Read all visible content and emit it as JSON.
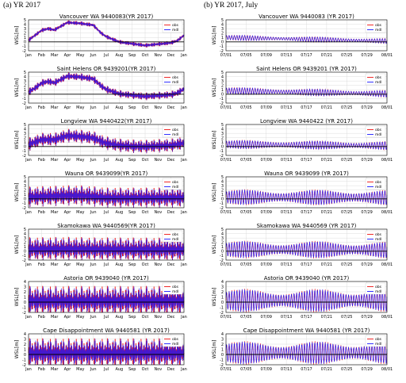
{
  "headers": {
    "left": "(a) YR 2017",
    "right": "(b) YR 2017, July"
  },
  "ylabel": "WSL[m]",
  "legend": {
    "obs": "obs",
    "mdl": "mdl"
  },
  "colors": {
    "obs": "#ee1111",
    "mdl": "#1a1aff",
    "zero": "#000000"
  },
  "chart_data": [
    {
      "type": "line",
      "panel": "a",
      "row": 0,
      "title": "Vancouver WA 9440083(YR 2017)",
      "xticks": [
        "Jan",
        "Feb",
        "Mar",
        "Apr",
        "May",
        "Jun",
        "Jul",
        "Aug",
        "Sep",
        "Oct",
        "Nov",
        "Dec",
        "Jan"
      ],
      "yticks": [
        -2,
        -1,
        0,
        1,
        2,
        3,
        4,
        5
      ],
      "ylim": [
        -2,
        5
      ],
      "legend_position": "top-right",
      "series": [
        {
          "name": "obs"
        },
        {
          "name": "mdl"
        }
      ],
      "stage": [
        [
          0,
          0.4
        ],
        [
          0.5,
          1.5
        ],
        [
          1,
          2.6
        ],
        [
          1.5,
          3.0
        ],
        [
          2,
          2.7
        ],
        [
          3,
          4.4
        ],
        [
          4,
          4.2
        ],
        [
          5,
          3.8
        ],
        [
          5.6,
          2.0
        ],
        [
          6,
          1.2
        ],
        [
          7,
          0.0
        ],
        [
          8,
          -0.4
        ],
        [
          9,
          -0.8
        ],
        [
          10,
          -0.5
        ],
        [
          11,
          -0.2
        ],
        [
          11.5,
          0.3
        ],
        [
          12,
          1.5
        ]
      ],
      "tidal_range": 0.5
    },
    {
      "type": "line",
      "panel": "a",
      "row": 1,
      "title": "Saint Helens OR 9439201(YR 2017)",
      "xticks": [
        "Jan",
        "Feb",
        "Mar",
        "Apr",
        "May",
        "Jun",
        "Jul",
        "Aug",
        "Sep",
        "Oct",
        "Nov",
        "Dec",
        "Jan"
      ],
      "yticks": [
        -2,
        -1,
        0,
        1,
        2,
        3,
        4,
        5
      ],
      "ylim": [
        -2,
        5
      ],
      "legend_position": "top-right",
      "series": [
        {
          "name": "obs"
        },
        {
          "name": "mdl"
        }
      ],
      "stage": [
        [
          0,
          0.5
        ],
        [
          0.5,
          1.4
        ],
        [
          1,
          2.5
        ],
        [
          1.5,
          2.9
        ],
        [
          2,
          2.6
        ],
        [
          3,
          4.1
        ],
        [
          4,
          3.9
        ],
        [
          5,
          3.5
        ],
        [
          5.6,
          1.9
        ],
        [
          6,
          1.1
        ],
        [
          7,
          0.1
        ],
        [
          8,
          -0.2
        ],
        [
          9,
          -0.5
        ],
        [
          10,
          -0.3
        ],
        [
          11,
          -0.1
        ],
        [
          11.5,
          0.3
        ],
        [
          12,
          1.2
        ]
      ],
      "tidal_range": 0.9
    },
    {
      "type": "line",
      "panel": "a",
      "row": 2,
      "title": "Longview WA 9440422(YR 2017)",
      "xticks": [
        "Jan",
        "Feb",
        "Mar",
        "Apr",
        "May",
        "Jun",
        "Jul",
        "Aug",
        "Sep",
        "Oct",
        "Nov",
        "Dec",
        "Jan"
      ],
      "yticks": [
        -2,
        -1,
        0,
        1,
        2,
        3,
        4,
        5
      ],
      "ylim": [
        -2,
        5
      ],
      "legend_position": "top-right",
      "series": [
        {
          "name": "obs"
        },
        {
          "name": "mdl"
        }
      ],
      "stage": [
        [
          0,
          0.5
        ],
        [
          1,
          1.6
        ],
        [
          2,
          1.6
        ],
        [
          3,
          2.5
        ],
        [
          4,
          2.3
        ],
        [
          5,
          2.0
        ],
        [
          5.6,
          1.2
        ],
        [
          6,
          0.8
        ],
        [
          7,
          0.3
        ],
        [
          8,
          0.1
        ],
        [
          9,
          0.0
        ],
        [
          10,
          0.2
        ],
        [
          11,
          0.3
        ],
        [
          12,
          0.8
        ]
      ],
      "tidal_range": 1.6
    },
    {
      "type": "line",
      "panel": "a",
      "row": 3,
      "title": "Wauna OR 9439099(YR 2017)",
      "xticks": [
        "Jan",
        "Feb",
        "Mar",
        "Apr",
        "May",
        "Jun",
        "Jul",
        "Aug",
        "Sep",
        "Oct",
        "Nov",
        "Dec",
        "Jan"
      ],
      "yticks": [
        -2,
        -1,
        0,
        1,
        2,
        3,
        4,
        5
      ],
      "ylim": [
        -2,
        5
      ],
      "legend_position": "top-right",
      "series": [
        {
          "name": "obs"
        },
        {
          "name": "mdl"
        }
      ],
      "stage": [
        [
          0,
          0.5
        ],
        [
          3,
          0.8
        ],
        [
          4,
          0.8
        ],
        [
          5,
          0.6
        ],
        [
          6,
          0.3
        ],
        [
          12,
          0.3
        ]
      ],
      "tidal_range": 2.4
    },
    {
      "type": "line",
      "panel": "a",
      "row": 4,
      "title": "Skamokawa WA 9440569(YR 2017)",
      "xticks": [
        "Jan",
        "Feb",
        "Mar",
        "Apr",
        "May",
        "Jun",
        "Jul",
        "Aug",
        "Sep",
        "Oct",
        "Nov",
        "Dec",
        "Jan"
      ],
      "yticks": [
        -2,
        -1,
        0,
        1,
        2,
        3,
        4,
        5
      ],
      "ylim": [
        -2,
        5
      ],
      "legend_position": "top-right",
      "series": [
        {
          "name": "obs"
        },
        {
          "name": "mdl"
        }
      ],
      "stage": [
        [
          0,
          0.5
        ],
        [
          3,
          0.6
        ],
        [
          5,
          0.5
        ],
        [
          12,
          0.4
        ]
      ],
      "tidal_range": 2.8
    },
    {
      "type": "line",
      "panel": "a",
      "row": 5,
      "title": "Astoria OR 9439040 (YR 2017)",
      "xticks": [
        "Jan",
        "Feb",
        "Mar",
        "Apr",
        "May",
        "Jun",
        "Jul",
        "Aug",
        "Sep",
        "Oct",
        "Nov",
        "Dec",
        "Jan"
      ],
      "yticks": [
        -2,
        -1,
        0,
        1,
        2,
        3,
        4
      ],
      "ylim": [
        -2,
        4
      ],
      "legend_position": "top-right",
      "series": [
        {
          "name": "obs"
        },
        {
          "name": "mdl"
        }
      ],
      "stage": [
        [
          0,
          0.3
        ],
        [
          12,
          0.3
        ]
      ],
      "tidal_range": 3.0
    },
    {
      "type": "line",
      "panel": "a",
      "row": 6,
      "title": "Cape Disappointment WA 9440581 (YR 2017)",
      "xticks": [
        "Jan",
        "Feb",
        "Mar",
        "Apr",
        "May",
        "Jun",
        "Jul",
        "Aug",
        "Sep",
        "Oct",
        "Nov",
        "Dec",
        "Jan"
      ],
      "yticks": [
        -2,
        -1,
        0,
        1,
        2,
        3,
        4
      ],
      "ylim": [
        -2,
        4
      ],
      "legend_position": "top-right",
      "series": [
        {
          "name": "obs"
        },
        {
          "name": "mdl"
        }
      ],
      "stage": [
        [
          0,
          0.3
        ],
        [
          12,
          0.3
        ]
      ],
      "tidal_range": 3.0
    },
    {
      "type": "line",
      "panel": "b",
      "row": 0,
      "title": "Vancouver WA 9440083 (YR 2017)",
      "xticks": [
        "07/01",
        "07/05",
        "07/09",
        "07/13",
        "07/17",
        "07/21",
        "07/25",
        "07/29",
        "08/01"
      ],
      "yticks": [
        -2,
        -1,
        0,
        1,
        2,
        3,
        4,
        5
      ],
      "ylim": [
        -2,
        5
      ],
      "legend_position": "top-right",
      "series": [
        {
          "name": "obs"
        },
        {
          "name": "mdl"
        }
      ],
      "stage": [
        [
          0,
          1.0
        ],
        [
          31,
          0.2
        ]
      ],
      "tidal_range": 0.6
    },
    {
      "type": "line",
      "panel": "b",
      "row": 1,
      "title": "Saint Helens OR 9439201 (YR 2017)",
      "xticks": [
        "07/01",
        "07/05",
        "07/09",
        "07/13",
        "07/17",
        "07/21",
        "07/25",
        "07/29",
        "08/01"
      ],
      "yticks": [
        -2,
        -1,
        0,
        1,
        2,
        3,
        4,
        5
      ],
      "ylim": [
        -2,
        5
      ],
      "legend_position": "top-right",
      "series": [
        {
          "name": "obs"
        },
        {
          "name": "mdl"
        }
      ],
      "stage": [
        [
          0,
          0.8
        ],
        [
          31,
          0.1
        ]
      ],
      "tidal_range": 0.8
    },
    {
      "type": "line",
      "panel": "b",
      "row": 2,
      "title": "Longview WA 9440422 (YR 2017)",
      "xticks": [
        "07/01",
        "07/05",
        "07/09",
        "07/13",
        "07/17",
        "07/21",
        "07/25",
        "07/29",
        "08/01"
      ],
      "yticks": [
        -2,
        -1,
        0,
        1,
        2,
        3,
        4,
        5
      ],
      "ylim": [
        -2,
        5
      ],
      "legend_position": "top-right",
      "series": [
        {
          "name": "obs"
        },
        {
          "name": "mdl"
        }
      ],
      "stage": [
        [
          0,
          0.5
        ],
        [
          31,
          0.2
        ]
      ],
      "tidal_range": 1.0
    },
    {
      "type": "line",
      "panel": "b",
      "row": 3,
      "title": "Wauna OR 9439099 (YR 2017)",
      "xticks": [
        "07/01",
        "07/05",
        "07/09",
        "07/13",
        "07/17",
        "07/21",
        "07/25",
        "07/29",
        "08/01"
      ],
      "yticks": [
        -2,
        -1,
        0,
        1,
        2,
        3,
        4,
        5
      ],
      "ylim": [
        -2,
        5
      ],
      "legend_position": "top-right",
      "series": [
        {
          "name": "obs"
        },
        {
          "name": "mdl"
        }
      ],
      "stage": [
        [
          0,
          0.4
        ],
        [
          31,
          0.3
        ]
      ],
      "tidal_range": 1.8
    },
    {
      "type": "line",
      "panel": "b",
      "row": 4,
      "title": "Skamokawa WA 9440569 (YR 2017)",
      "xticks": [
        "07/01",
        "07/05",
        "07/09",
        "07/13",
        "07/17",
        "07/21",
        "07/25",
        "07/29",
        "08/01"
      ],
      "yticks": [
        -2,
        -1,
        0,
        1,
        2,
        3,
        4,
        5
      ],
      "ylim": [
        -2,
        5
      ],
      "legend_position": "top-right",
      "series": [
        {
          "name": "obs"
        },
        {
          "name": "mdl"
        }
      ],
      "stage": [
        [
          0,
          0.4
        ],
        [
          31,
          0.3
        ]
      ],
      "tidal_range": 2.0
    },
    {
      "type": "line",
      "panel": "b",
      "row": 5,
      "title": "Astoria OR 9439040 (YR 2017)",
      "xticks": [
        "07/01",
        "07/05",
        "07/09",
        "07/13",
        "07/17",
        "07/21",
        "07/25",
        "07/29",
        "08/01"
      ],
      "yticks": [
        -2,
        -1,
        0,
        1,
        2,
        3,
        4
      ],
      "ylim": [
        -2,
        4
      ],
      "legend_position": "top-right",
      "series": [
        {
          "name": "obs"
        },
        {
          "name": "mdl"
        }
      ],
      "stage": [
        [
          0,
          0.3
        ],
        [
          31,
          0.3
        ]
      ],
      "tidal_range": 2.3
    },
    {
      "type": "line",
      "panel": "b",
      "row": 6,
      "title": "Cape Disappointment WA 9440581 (YR 2017)",
      "xticks": [
        "07/01",
        "07/05",
        "07/09",
        "07/13",
        "07/17",
        "07/21",
        "07/25",
        "07/29",
        "08/01"
      ],
      "yticks": [
        -2,
        -1,
        0,
        1,
        2,
        3,
        4
      ],
      "ylim": [
        -2,
        4
      ],
      "legend_position": "top-right",
      "series": [
        {
          "name": "obs"
        },
        {
          "name": "mdl"
        }
      ],
      "stage": [
        [
          0,
          0.3
        ],
        [
          31,
          0.3
        ]
      ],
      "tidal_range": 2.3
    }
  ]
}
